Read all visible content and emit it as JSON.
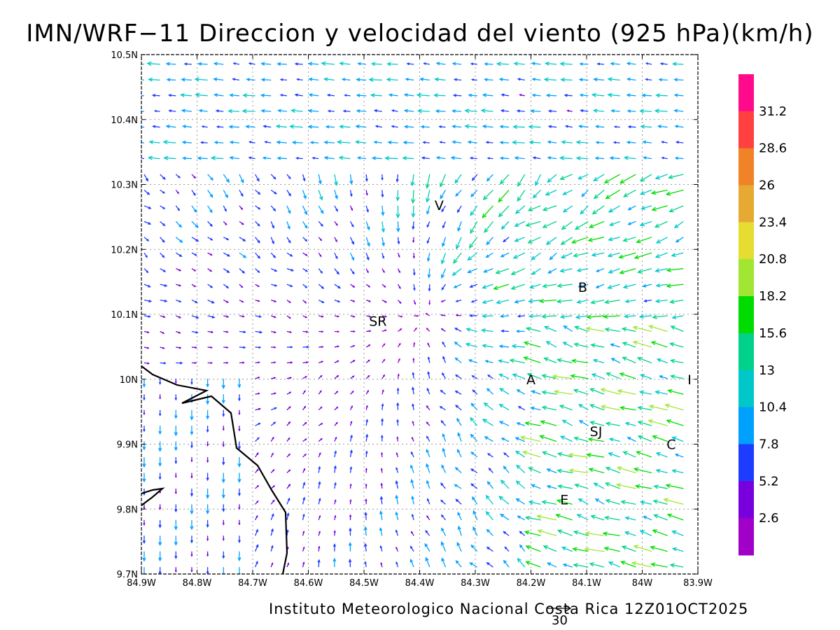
{
  "title": "IMN/WRF−11 Direccion y velocidad del viento (925 hPa)(km/h)",
  "footer": "Instituto Meteorologico Nacional Costa Rica  12Z01OCT2025",
  "reference_vector_label": "30",
  "x_ticks": [
    "84.9W",
    "84.8W",
    "84.7W",
    "84.6W",
    "84.5W",
    "84.4W",
    "84.3W",
    "84.2W",
    "84.1W",
    "84W",
    "83.9W"
  ],
  "y_ticks": [
    "10.5N",
    "10.4N",
    "10.3N",
    "10.2N",
    "10.1N",
    "10N",
    "9.9N",
    "9.8N",
    "9.7N"
  ],
  "colorbar": {
    "labels": [
      "31.2",
      "28.6",
      "26",
      "23.4",
      "20.8",
      "18.2",
      "15.6",
      "13",
      "10.4",
      "7.8",
      "5.2",
      "2.6"
    ],
    "colors": [
      "#ff0a8c",
      "#ff4040",
      "#f08228",
      "#e6aa32",
      "#e6dc32",
      "#a0e632",
      "#00dc00",
      "#00d28c",
      "#00c8c8",
      "#00a0ff",
      "#1e3cff",
      "#7800dc",
      "#a000c8"
    ]
  },
  "cities": [
    {
      "label": "V",
      "lon": -84.365,
      "lat": 10.268
    },
    {
      "label": "B",
      "lon": -84.107,
      "lat": 10.142
    },
    {
      "label": "SR",
      "lon": -84.475,
      "lat": 10.09
    },
    {
      "label": "A",
      "lon": -84.2,
      "lat": 10.0
    },
    {
      "label": "I",
      "lon": -83.915,
      "lat": 10.0
    },
    {
      "label": "SJ",
      "lon": -84.083,
      "lat": 9.92
    },
    {
      "label": "C",
      "lon": -83.948,
      "lat": 9.9
    },
    {
      "label": "E",
      "lon": -84.14,
      "lat": 9.815
    }
  ],
  "extent": {
    "lon_min": -84.9,
    "lon_max": -83.9,
    "lat_min": 9.7,
    "lat_max": 10.5
  }
}
